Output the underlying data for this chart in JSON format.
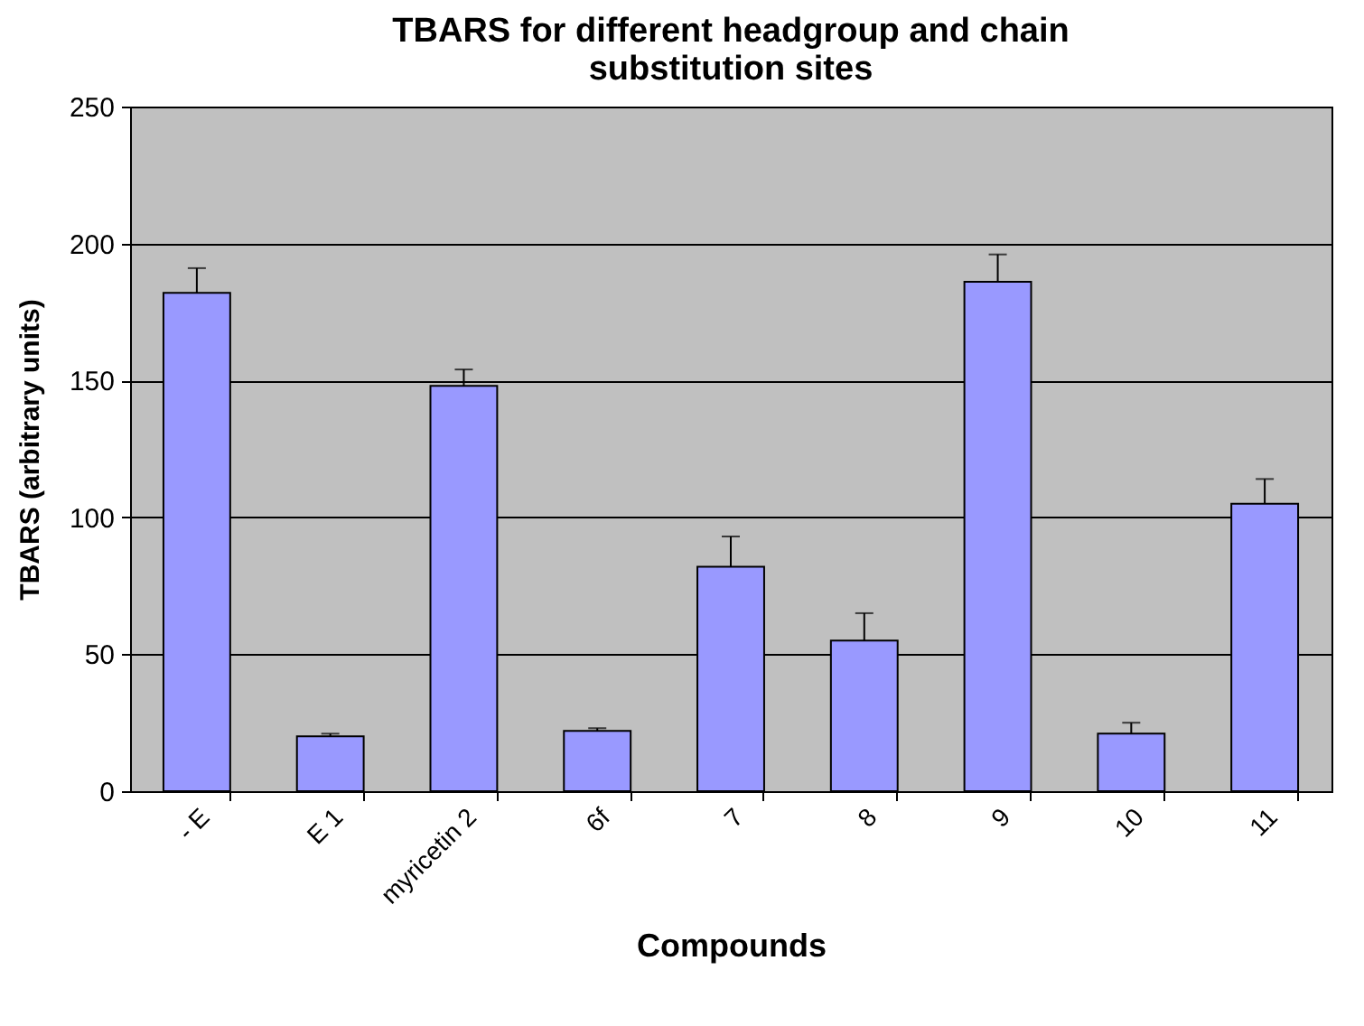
{
  "chart_data": {
    "type": "bar",
    "title": "TBARS for different headgroup and chain substitution sites",
    "xlabel": "Compounds",
    "ylabel": "TBARS (arbitrary units)",
    "categories": [
      "- E",
      "E 1",
      "myricetin 2",
      "6f",
      "7",
      "8",
      "9",
      "10",
      "11"
    ],
    "values": [
      182,
      20,
      148,
      22,
      82,
      55,
      186,
      21,
      105
    ],
    "errors": [
      [
        182,
        191
      ],
      [
        20,
        21
      ],
      [
        148,
        154
      ],
      [
        22,
        23
      ],
      [
        82,
        93
      ],
      [
        55,
        65
      ],
      [
        186,
        196
      ],
      [
        21,
        25
      ],
      [
        105,
        114
      ]
    ],
    "color": "#9999ff",
    "ylim": [
      0,
      250
    ],
    "yticks": [
      0,
      50,
      100,
      150,
      200,
      250
    ],
    "grid": "y"
  }
}
